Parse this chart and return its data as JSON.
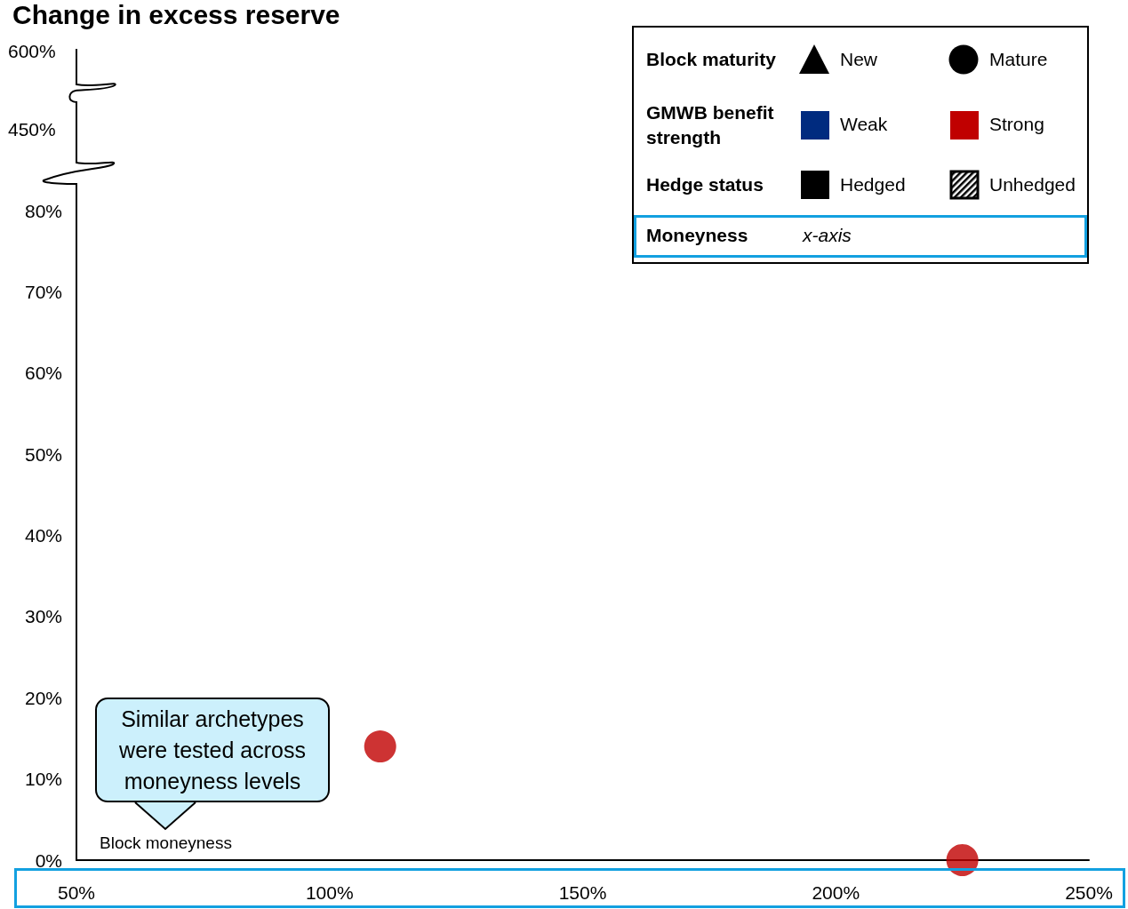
{
  "chart_data": {
    "type": "scatter",
    "title": "Change in excess reserve",
    "xlabel": "Block moneyness",
    "x": [
      110,
      225
    ],
    "values": [
      14,
      0
    ],
    "color": "#c00000",
    "marker": "circle",
    "xlim": [
      50,
      250
    ],
    "xticks": [
      {
        "value": 50,
        "label": "50%"
      },
      {
        "value": 100,
        "label": "100%"
      },
      {
        "value": 150,
        "label": "150%"
      },
      {
        "value": 200,
        "label": "200%"
      },
      {
        "value": 250,
        "label": "250%"
      }
    ],
    "ylim": [
      0,
      80
    ],
    "yticks": [
      {
        "value": 0,
        "label": "0%"
      },
      {
        "value": 10,
        "label": "10%"
      },
      {
        "value": 20,
        "label": "20%"
      },
      {
        "value": 30,
        "label": "30%"
      },
      {
        "value": 40,
        "label": "40%"
      },
      {
        "value": 50,
        "label": "50%"
      },
      {
        "value": 60,
        "label": "60%"
      },
      {
        "value": 70,
        "label": "70%"
      },
      {
        "value": 80,
        "label": "80%"
      }
    ],
    "grid": false,
    "annotations": [
      "Similar archetypes were tested across moneyness levels",
      "Block maturity",
      "New",
      "Mature",
      "GMWB benefit strength",
      "Weak",
      "Strong",
      "Hedge status",
      "Hedged",
      "Unhedged",
      "Moneyness",
      "x-axis",
      "600%",
      "450%"
    ]
  }
}
